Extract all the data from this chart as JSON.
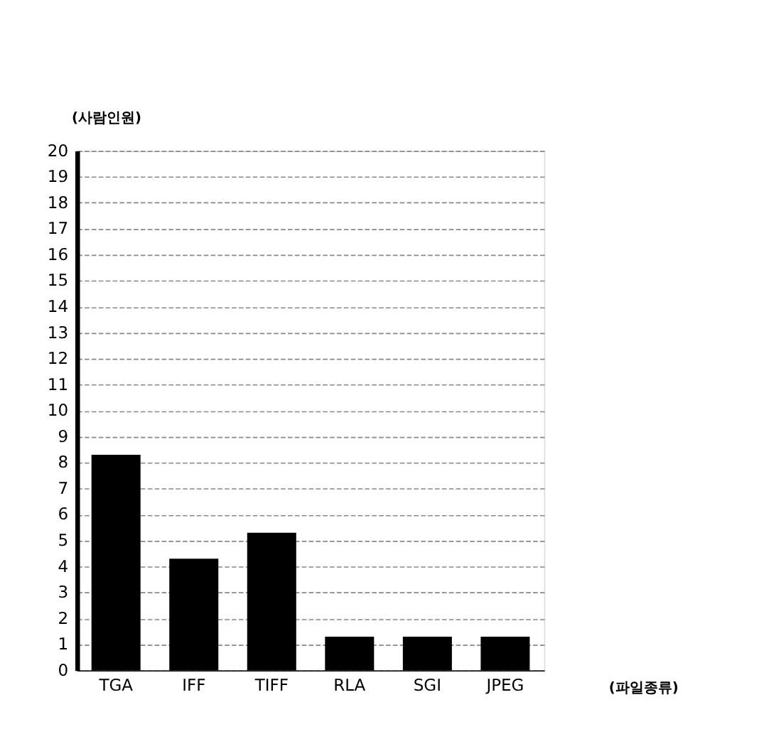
{
  "chart_data": {
    "type": "bar",
    "ylabel": "(사람인원)",
    "xlabel": "(파일종류)",
    "categories": [
      "TGA",
      "IFF",
      "TIFF",
      "RLA",
      "SGI",
      "JPEG"
    ],
    "values": [
      8.3,
      4.3,
      5.3,
      1.3,
      1.3,
      1.3
    ],
    "color": "#000000",
    "ylim": [
      0,
      20
    ],
    "yticks": [
      0,
      1,
      2,
      3,
      4,
      5,
      6,
      7,
      8,
      9,
      10,
      11,
      12,
      13,
      14,
      15,
      16,
      17,
      18,
      19,
      20
    ],
    "grid": "y",
    "line_style": "dashed"
  }
}
